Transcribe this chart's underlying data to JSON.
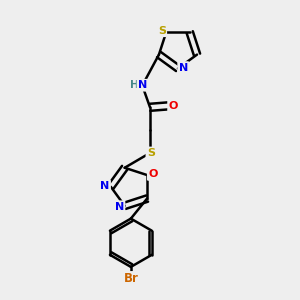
{
  "background_color": "#eeeeee",
  "bond_color": "#000000",
  "atom_colors": {
    "S": "#b8a000",
    "N": "#0000ee",
    "O": "#ee0000",
    "Br": "#cc6600",
    "H": "#448888",
    "C": "#000000"
  },
  "figsize": [
    3.0,
    3.0
  ],
  "dpi": 100
}
